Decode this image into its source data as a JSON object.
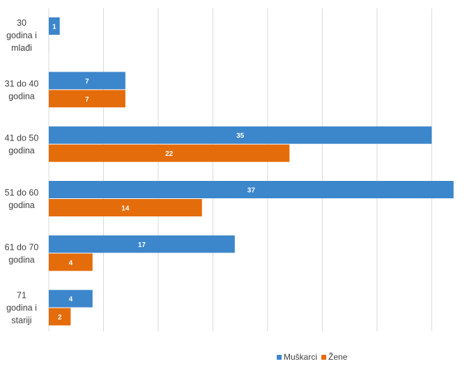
{
  "chart_data": {
    "type": "bar",
    "orientation": "horizontal",
    "categories": [
      [
        "30",
        "godina i",
        "mlađi"
      ],
      [
        "31 do 40",
        "godina"
      ],
      [
        "41 do 50",
        "godina"
      ],
      [
        "51 do 60",
        "godina"
      ],
      [
        "61 do 70",
        "godina"
      ],
      [
        "71",
        "godina i",
        "stariji"
      ]
    ],
    "series": [
      {
        "name": "Muškarci",
        "color": "#3C86CB",
        "values": [
          1,
          7,
          35,
          37,
          17,
          4
        ]
      },
      {
        "name": "Žene",
        "color": "#E46C0A",
        "values": [
          0,
          7,
          22,
          14,
          4,
          2
        ]
      }
    ],
    "data_labels_shown": [
      [
        true,
        true,
        true,
        true,
        true,
        true
      ],
      [
        false,
        true,
        true,
        true,
        true,
        true
      ]
    ],
    "xlim": [
      0,
      40
    ],
    "grid_step": 5,
    "gridlines": "vertical",
    "axis_tick_labels_shown": false,
    "legend_position": "bottom-right",
    "gridline_color": "#D9D9D9"
  }
}
